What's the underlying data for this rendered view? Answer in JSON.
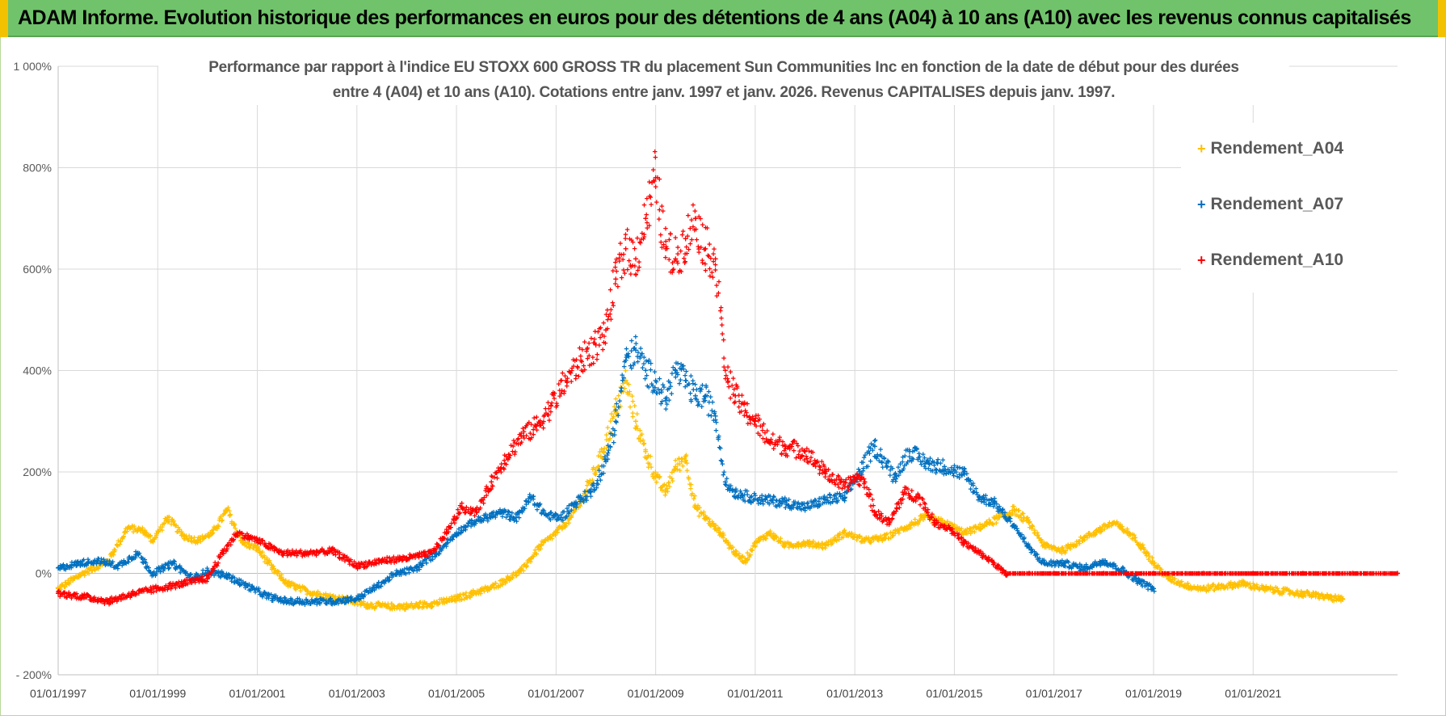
{
  "header": {
    "title": "ADAM Informe. Evolution historique des performances en euros pour des détentions de 4 ans (A04) à 10 ans (A10) avec les revenus connus capitalisés"
  },
  "colors": {
    "banner": "#70c36a",
    "accent": "#f2c200",
    "A04": "#ffc000",
    "A07": "#0070c0",
    "A10": "#ff0000"
  },
  "chart_data": {
    "type": "scatter",
    "title_line1": "Performance par rapport à l'indice EU STOXX 600 GROSS TR  du placement Sun Communities Inc en fonction de la date de début pour des durées",
    "title_line2": "entre 4 (A04) et 10 ans (A10).  Cotations entre janv. 1997 et janv. 2026.  Revenus CAPITALISES  depuis janv. 1997.",
    "xlabel": "",
    "ylabel": "",
    "xlim": [
      1997.0,
      2023.9
    ],
    "ylim": [
      -200,
      1000
    ],
    "y_ticks": [
      -200,
      0,
      200,
      400,
      600,
      800,
      1000
    ],
    "y_tick_labels": [
      "- 200%",
      "0%",
      "200%",
      "400%",
      "600%",
      "800%",
      "1 000%"
    ],
    "x_ticks": [
      1997,
      1999,
      2001,
      2003,
      2005,
      2007,
      2009,
      2011,
      2013,
      2015,
      2017,
      2019,
      2021
    ],
    "x_tick_labels": [
      "01/01/1997",
      "01/01/1999",
      "01/01/2001",
      "01/01/2003",
      "01/01/2005",
      "01/01/2007",
      "01/01/2009",
      "01/01/2011",
      "01/01/2013",
      "01/01/2015",
      "01/01/2017",
      "01/01/2019",
      "01/01/2021"
    ],
    "grid": true,
    "legend_position": "top-right",
    "series": [
      {
        "name": "Rendement_A04",
        "color": "#ffc000",
        "x": [
          1997.0,
          1997.5,
          1998.0,
          1998.4,
          1998.7,
          1998.9,
          1999.2,
          1999.5,
          1999.8,
          2000.1,
          2000.4,
          2000.7,
          2001.0,
          2001.3,
          2001.6,
          2002.0,
          2002.4,
          2002.8,
          2003.2,
          2003.6,
          2004.0,
          2004.5,
          2005.0,
          2005.3,
          2005.7,
          2006.0,
          2006.3,
          2006.7,
          2007.0,
          2007.3,
          2007.6,
          2007.9,
          2008.2,
          2008.4,
          2008.6,
          2008.8,
          2009.0,
          2009.2,
          2009.4,
          2009.6,
          2009.8,
          2010.0,
          2010.3,
          2010.6,
          2010.8,
          2011.0,
          2011.3,
          2011.6,
          2012.0,
          2012.4,
          2012.8,
          2013.2,
          2013.6,
          2014.0,
          2014.4,
          2014.8,
          2015.2,
          2015.6,
          2015.9,
          2016.2,
          2016.5,
          2016.8,
          2017.2,
          2017.6,
          2017.9,
          2018.2,
          2018.5,
          2018.8,
          2019.0,
          2019.3,
          2019.7,
          2020.0,
          2020.4,
          2020.8,
          2021.2,
          2021.6,
          2022.0,
          2022.4,
          2022.8
        ],
        "values": [
          -30,
          0,
          25,
          90,
          85,
          65,
          110,
          75,
          65,
          80,
          125,
          60,
          50,
          10,
          -20,
          -35,
          -45,
          -52,
          -62,
          -65,
          -65,
          -60,
          -50,
          -40,
          -28,
          -12,
          5,
          55,
          80,
          110,
          160,
          230,
          320,
          380,
          300,
          240,
          190,
          160,
          210,
          230,
          130,
          110,
          80,
          40,
          25,
          60,
          80,
          55,
          60,
          55,
          80,
          65,
          70,
          90,
          110,
          100,
          80,
          95,
          110,
          125,
          100,
          55,
          45,
          70,
          85,
          100,
          80,
          50,
          20,
          -10,
          -25,
          -30,
          -25,
          -20,
          -30,
          -35,
          -40,
          -45,
          -52
        ]
      },
      {
        "name": "Rendement_A07",
        "color": "#0070c0",
        "x": [
          1997.0,
          1997.4,
          1997.8,
          1998.2,
          1998.6,
          1998.9,
          1999.3,
          1999.7,
          2000.0,
          2000.4,
          2000.8,
          2001.2,
          2001.6,
          2002.0,
          2002.5,
          2003.0,
          2003.4,
          2003.8,
          2004.2,
          2004.6,
          2005.0,
          2005.3,
          2005.6,
          2005.9,
          2006.2,
          2006.5,
          2006.8,
          2007.1,
          2007.4,
          2007.7,
          2008.0,
          2008.2,
          2008.4,
          2008.6,
          2008.8,
          2009.0,
          2009.2,
          2009.4,
          2009.6,
          2009.8,
          2010.0,
          2010.2,
          2010.4,
          2010.6,
          2010.9,
          2011.2,
          2011.6,
          2012.0,
          2012.4,
          2012.8,
          2013.1,
          2013.4,
          2013.8,
          2014.1,
          2014.5,
          2014.8,
          2015.2,
          2015.5,
          2015.8,
          2016.2,
          2016.5,
          2016.8,
          2017.2,
          2017.6,
          2018.0,
          2018.4,
          2018.7,
          2019.0
        ],
        "values": [
          10,
          20,
          25,
          15,
          40,
          0,
          20,
          -10,
          5,
          -5,
          -25,
          -45,
          -55,
          -55,
          -55,
          -50,
          -25,
          0,
          10,
          40,
          80,
          100,
          110,
          120,
          110,
          150,
          115,
          110,
          140,
          160,
          220,
          300,
          420,
          440,
          400,
          380,
          340,
          400,
          380,
          350,
          350,
          310,
          180,
          160,
          150,
          145,
          140,
          130,
          145,
          150,
          200,
          250,
          190,
          240,
          215,
          210,
          195,
          150,
          140,
          95,
          50,
          20,
          20,
          10,
          25,
          5,
          -15,
          -30
        ]
      },
      {
        "name": "Rendement_A10",
        "color": "#ff0000",
        "x": [
          1997.0,
          1997.5,
          1998.0,
          1998.5,
          1999.0,
          1999.5,
          2000.0,
          2000.3,
          2000.6,
          2001.0,
          2001.5,
          2002.0,
          2002.5,
          2003.0,
          2003.5,
          2004.0,
          2004.5,
          2004.8,
          2005.1,
          2005.4,
          2005.7,
          2006.0,
          2006.3,
          2006.6,
          2006.9,
          2007.2,
          2007.5,
          2007.8,
          2008.0,
          2008.2,
          2008.4,
          2008.6,
          2008.8,
          2009.0,
          2009.2,
          2009.4,
          2009.6,
          2009.8,
          2010.0,
          2010.2,
          2010.4,
          2010.6,
          2010.8,
          2011.0,
          2011.3,
          2011.6,
          2012.0,
          2012.4,
          2012.8,
          2013.0,
          2013.2,
          2013.4,
          2013.7,
          2014.0,
          2014.3,
          2014.6,
          2014.9,
          2015.2,
          2015.5,
          2015.8,
          2016.0,
          2016.5,
          2017.0,
          2018.0,
          2019.0,
          2020.0,
          2021.0,
          2022.0,
          2023.0,
          2023.9
        ],
        "values": [
          -40,
          -45,
          -55,
          -40,
          -30,
          -20,
          -10,
          40,
          80,
          65,
          40,
          40,
          45,
          15,
          25,
          30,
          40,
          80,
          130,
          120,
          180,
          230,
          270,
          290,
          330,
          380,
          420,
          450,
          480,
          580,
          640,
          620,
          700,
          780,
          640,
          620,
          660,
          700,
          640,
          620,
          400,
          350,
          320,
          300,
          260,
          250,
          240,
          200,
          170,
          190,
          180,
          120,
          100,
          160,
          150,
          100,
          90,
          60,
          40,
          20,
          0,
          0,
          0,
          0,
          0,
          0,
          0,
          0,
          0,
          0
        ]
      }
    ]
  }
}
